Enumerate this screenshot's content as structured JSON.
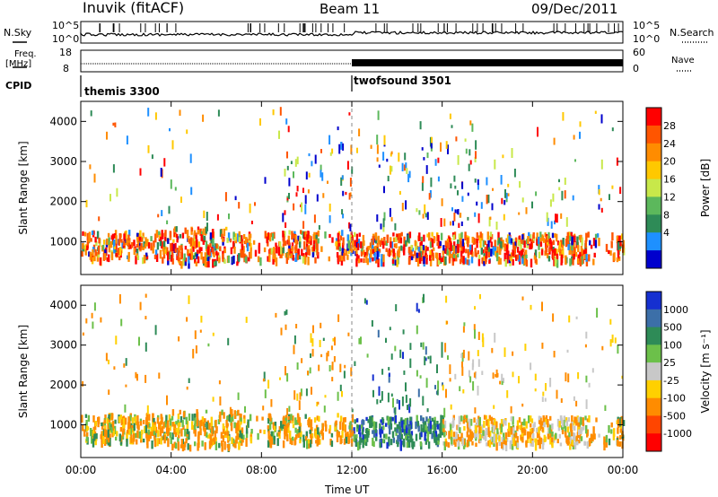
{
  "header": {
    "station": "Inuvik (fitACF)",
    "beam": "Beam 11",
    "date": "09/Dec/2011"
  },
  "nsky": {
    "label": "N.Sky",
    "right_label": "N.Search",
    "ticks": [
      "10^5",
      "10^0"
    ]
  },
  "freq": {
    "label_line1": "Freq.",
    "label_line2": "[MHz]",
    "ticks": [
      "18",
      "8"
    ],
    "right_label": "Nave",
    "right_ticks": [
      "60",
      "0"
    ]
  },
  "cpid": {
    "label": "CPID",
    "programs": [
      {
        "name": "themis 3300",
        "start_hour": 0
      },
      {
        "name": "twofsound 3501",
        "start_hour": 12
      }
    ]
  },
  "chart_data": [
    {
      "type": "heatmap",
      "title": "Power",
      "ylabel": "Slant Range [km]",
      "yticks": [
        1000,
        2000,
        3000,
        4000
      ],
      "ylim": [
        180,
        4500
      ],
      "xlim": [
        0,
        24
      ],
      "xticks_hours": [
        0,
        4,
        8,
        12,
        16,
        20,
        24
      ],
      "colorbar": {
        "label": "Power [dB]",
        "ticks": [
          "28",
          "24",
          "20",
          "16",
          "12",
          "8",
          "4"
        ],
        "colors": [
          "#ff0000",
          "#ff5500",
          "#ff8c00",
          "#ffc800",
          "#c8e84a",
          "#5cb85c",
          "#2e8b57",
          "#1e90ff",
          "#0000cd"
        ]
      }
    },
    {
      "type": "heatmap",
      "title": "Velocity",
      "ylabel": "Slant Range [km]",
      "yticks": [
        1000,
        2000,
        3000,
        4000
      ],
      "ylim": [
        180,
        4500
      ],
      "xlim": [
        0,
        24
      ],
      "xticks_hours": [
        0,
        4,
        8,
        12,
        16,
        20,
        24
      ],
      "colorbar": {
        "label": "Velocity [m s⁻¹]",
        "ticks": [
          "1000",
          "500",
          "100",
          "25",
          "-25",
          "-100",
          "-500",
          "-1000"
        ],
        "colors": [
          "#1530d0",
          "#3c6fa8",
          "#2e8b57",
          "#6cc04a",
          "#c8c8c8",
          "#ffd000",
          "#ff8c00",
          "#ff4500",
          "#ff0000"
        ]
      }
    }
  ],
  "xaxis": {
    "labels": [
      "00:00",
      "04:00",
      "08:00",
      "12:00",
      "16:00",
      "20:00",
      "00:00"
    ],
    "title": "Time UT"
  }
}
